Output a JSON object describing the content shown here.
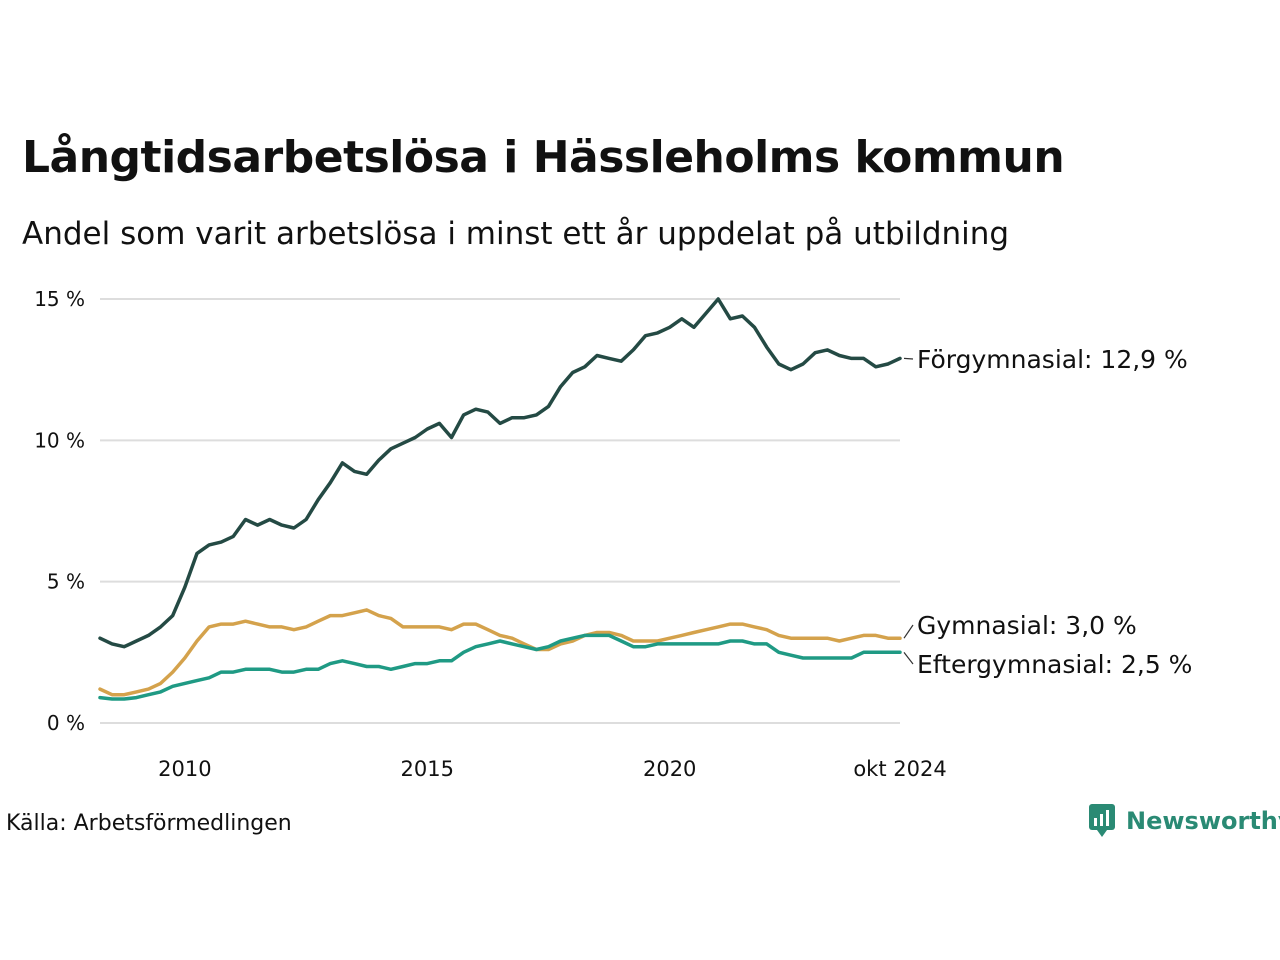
{
  "title": "Långtidsarbetslösa i Hässleholms kommun",
  "subtitle": "Andel som varit arbetslösa i minst ett år uppdelat på utbildning",
  "source": "Källa: Arbetsförmedlingen",
  "logo_text": "Newsworthy",
  "colors": {
    "forgymnasial": "#244a44",
    "gymnasial": "#d4a24c",
    "eftergymnasial": "#1f9a84",
    "grid": "#dddddd",
    "logo": "#2a8a74"
  },
  "chart_data": {
    "type": "line",
    "title": "Långtidsarbetslösa i Hässleholms kommun",
    "subtitle": "Andel som varit arbetslösa i minst ett år uppdelat på utbildning",
    "x_range": [
      2008.25,
      2024.75
    ],
    "ylim": [
      0,
      15
    ],
    "y_ticks": [
      0,
      5,
      10,
      15
    ],
    "y_tick_labels": [
      "0 %",
      "5 %",
      "10 %",
      "15 %"
    ],
    "x_ticks": [
      2010,
      2015,
      2020,
      2024.75
    ],
    "x_tick_labels": [
      "2010",
      "2015",
      "2020",
      "okt 2024"
    ],
    "grid": "horizontal",
    "series": [
      {
        "key": "forgymnasial",
        "name": "Förgymnasial",
        "label": "Förgymnasial: 12,9 %",
        "color": "#244a44",
        "points": [
          [
            2008.25,
            3.0
          ],
          [
            2008.5,
            2.8
          ],
          [
            2008.75,
            2.7
          ],
          [
            2009.0,
            2.9
          ],
          [
            2009.25,
            3.1
          ],
          [
            2009.5,
            3.4
          ],
          [
            2009.75,
            3.8
          ],
          [
            2010.0,
            4.8
          ],
          [
            2010.25,
            6.0
          ],
          [
            2010.5,
            6.3
          ],
          [
            2010.75,
            6.4
          ],
          [
            2011.0,
            6.6
          ],
          [
            2011.25,
            7.2
          ],
          [
            2011.5,
            7.0
          ],
          [
            2011.75,
            7.2
          ],
          [
            2012.0,
            7.0
          ],
          [
            2012.25,
            6.9
          ],
          [
            2012.5,
            7.2
          ],
          [
            2012.75,
            7.9
          ],
          [
            2013.0,
            8.5
          ],
          [
            2013.25,
            9.2
          ],
          [
            2013.5,
            8.9
          ],
          [
            2013.75,
            8.8
          ],
          [
            2014.0,
            9.3
          ],
          [
            2014.25,
            9.7
          ],
          [
            2014.5,
            9.9
          ],
          [
            2014.75,
            10.1
          ],
          [
            2015.0,
            10.4
          ],
          [
            2015.25,
            10.6
          ],
          [
            2015.5,
            10.1
          ],
          [
            2015.75,
            10.9
          ],
          [
            2016.0,
            11.1
          ],
          [
            2016.25,
            11.0
          ],
          [
            2016.5,
            10.6
          ],
          [
            2016.75,
            10.8
          ],
          [
            2017.0,
            10.8
          ],
          [
            2017.25,
            10.9
          ],
          [
            2017.5,
            11.2
          ],
          [
            2017.75,
            11.9
          ],
          [
            2018.0,
            12.4
          ],
          [
            2018.25,
            12.6
          ],
          [
            2018.5,
            13.0
          ],
          [
            2018.75,
            12.9
          ],
          [
            2019.0,
            12.8
          ],
          [
            2019.25,
            13.2
          ],
          [
            2019.5,
            13.7
          ],
          [
            2019.75,
            13.8
          ],
          [
            2020.0,
            14.0
          ],
          [
            2020.25,
            14.3
          ],
          [
            2020.5,
            14.0
          ],
          [
            2020.75,
            14.5
          ],
          [
            2021.0,
            15.0
          ],
          [
            2021.25,
            14.3
          ],
          [
            2021.5,
            14.4
          ],
          [
            2021.75,
            14.0
          ],
          [
            2022.0,
            13.3
          ],
          [
            2022.25,
            12.7
          ],
          [
            2022.5,
            12.5
          ],
          [
            2022.75,
            12.7
          ],
          [
            2023.0,
            13.1
          ],
          [
            2023.25,
            13.2
          ],
          [
            2023.5,
            13.0
          ],
          [
            2023.75,
            12.9
          ],
          [
            2024.0,
            12.9
          ],
          [
            2024.25,
            12.6
          ],
          [
            2024.5,
            12.7
          ],
          [
            2024.75,
            12.9
          ]
        ]
      },
      {
        "key": "gymnasial",
        "name": "Gymnasial",
        "label": "Gymnasial:  3,0 %",
        "color": "#d4a24c",
        "points": [
          [
            2008.25,
            1.2
          ],
          [
            2008.5,
            1.0
          ],
          [
            2008.75,
            1.0
          ],
          [
            2009.0,
            1.1
          ],
          [
            2009.25,
            1.2
          ],
          [
            2009.5,
            1.4
          ],
          [
            2009.75,
            1.8
          ],
          [
            2010.0,
            2.3
          ],
          [
            2010.25,
            2.9
          ],
          [
            2010.5,
            3.4
          ],
          [
            2010.75,
            3.5
          ],
          [
            2011.0,
            3.5
          ],
          [
            2011.25,
            3.6
          ],
          [
            2011.5,
            3.5
          ],
          [
            2011.75,
            3.4
          ],
          [
            2012.0,
            3.4
          ],
          [
            2012.25,
            3.3
          ],
          [
            2012.5,
            3.4
          ],
          [
            2012.75,
            3.6
          ],
          [
            2013.0,
            3.8
          ],
          [
            2013.25,
            3.8
          ],
          [
            2013.5,
            3.9
          ],
          [
            2013.75,
            4.0
          ],
          [
            2014.0,
            3.8
          ],
          [
            2014.25,
            3.7
          ],
          [
            2014.5,
            3.4
          ],
          [
            2014.75,
            3.4
          ],
          [
            2015.0,
            3.4
          ],
          [
            2015.25,
            3.4
          ],
          [
            2015.5,
            3.3
          ],
          [
            2015.75,
            3.5
          ],
          [
            2016.0,
            3.5
          ],
          [
            2016.25,
            3.3
          ],
          [
            2016.5,
            3.1
          ],
          [
            2016.75,
            3.0
          ],
          [
            2017.0,
            2.8
          ],
          [
            2017.25,
            2.6
          ],
          [
            2017.5,
            2.6
          ],
          [
            2017.75,
            2.8
          ],
          [
            2018.0,
            2.9
          ],
          [
            2018.25,
            3.1
          ],
          [
            2018.5,
            3.2
          ],
          [
            2018.75,
            3.2
          ],
          [
            2019.0,
            3.1
          ],
          [
            2019.25,
            2.9
          ],
          [
            2019.5,
            2.9
          ],
          [
            2019.75,
            2.9
          ],
          [
            2020.0,
            3.0
          ],
          [
            2020.25,
            3.1
          ],
          [
            2020.5,
            3.2
          ],
          [
            2020.75,
            3.3
          ],
          [
            2021.0,
            3.4
          ],
          [
            2021.25,
            3.5
          ],
          [
            2021.5,
            3.5
          ],
          [
            2021.75,
            3.4
          ],
          [
            2022.0,
            3.3
          ],
          [
            2022.25,
            3.1
          ],
          [
            2022.5,
            3.0
          ],
          [
            2022.75,
            3.0
          ],
          [
            2023.0,
            3.0
          ],
          [
            2023.25,
            3.0
          ],
          [
            2023.5,
            2.9
          ],
          [
            2023.75,
            3.0
          ],
          [
            2024.0,
            3.1
          ],
          [
            2024.25,
            3.1
          ],
          [
            2024.5,
            3.0
          ],
          [
            2024.75,
            3.0
          ]
        ]
      },
      {
        "key": "eftergymnasial",
        "name": "Eftergymnasial",
        "label": "Eftergymnasial:  2,5 %",
        "color": "#1f9a84",
        "points": [
          [
            2008.25,
            0.9
          ],
          [
            2008.5,
            0.85
          ],
          [
            2008.75,
            0.85
          ],
          [
            2009.0,
            0.9
          ],
          [
            2009.25,
            1.0
          ],
          [
            2009.5,
            1.1
          ],
          [
            2009.75,
            1.3
          ],
          [
            2010.0,
            1.4
          ],
          [
            2010.25,
            1.5
          ],
          [
            2010.5,
            1.6
          ],
          [
            2010.75,
            1.8
          ],
          [
            2011.0,
            1.8
          ],
          [
            2011.25,
            1.9
          ],
          [
            2011.5,
            1.9
          ],
          [
            2011.75,
            1.9
          ],
          [
            2012.0,
            1.8
          ],
          [
            2012.25,
            1.8
          ],
          [
            2012.5,
            1.9
          ],
          [
            2012.75,
            1.9
          ],
          [
            2013.0,
            2.1
          ],
          [
            2013.25,
            2.2
          ],
          [
            2013.5,
            2.1
          ],
          [
            2013.75,
            2.0
          ],
          [
            2014.0,
            2.0
          ],
          [
            2014.25,
            1.9
          ],
          [
            2014.5,
            2.0
          ],
          [
            2014.75,
            2.1
          ],
          [
            2015.0,
            2.1
          ],
          [
            2015.25,
            2.2
          ],
          [
            2015.5,
            2.2
          ],
          [
            2015.75,
            2.5
          ],
          [
            2016.0,
            2.7
          ],
          [
            2016.25,
            2.8
          ],
          [
            2016.5,
            2.9
          ],
          [
            2016.75,
            2.8
          ],
          [
            2017.0,
            2.7
          ],
          [
            2017.25,
            2.6
          ],
          [
            2017.5,
            2.7
          ],
          [
            2017.75,
            2.9
          ],
          [
            2018.0,
            3.0
          ],
          [
            2018.25,
            3.1
          ],
          [
            2018.5,
            3.1
          ],
          [
            2018.75,
            3.1
          ],
          [
            2019.0,
            2.9
          ],
          [
            2019.25,
            2.7
          ],
          [
            2019.5,
            2.7
          ],
          [
            2019.75,
            2.8
          ],
          [
            2020.0,
            2.8
          ],
          [
            2020.25,
            2.8
          ],
          [
            2020.5,
            2.8
          ],
          [
            2020.75,
            2.8
          ],
          [
            2021.0,
            2.8
          ],
          [
            2021.25,
            2.9
          ],
          [
            2021.5,
            2.9
          ],
          [
            2021.75,
            2.8
          ],
          [
            2022.0,
            2.8
          ],
          [
            2022.25,
            2.5
          ],
          [
            2022.5,
            2.4
          ],
          [
            2022.75,
            2.3
          ],
          [
            2023.0,
            2.3
          ],
          [
            2023.25,
            2.3
          ],
          [
            2023.5,
            2.3
          ],
          [
            2023.75,
            2.3
          ],
          [
            2024.0,
            2.5
          ],
          [
            2024.25,
            2.5
          ],
          [
            2024.5,
            2.5
          ],
          [
            2024.75,
            2.5
          ]
        ]
      }
    ]
  }
}
